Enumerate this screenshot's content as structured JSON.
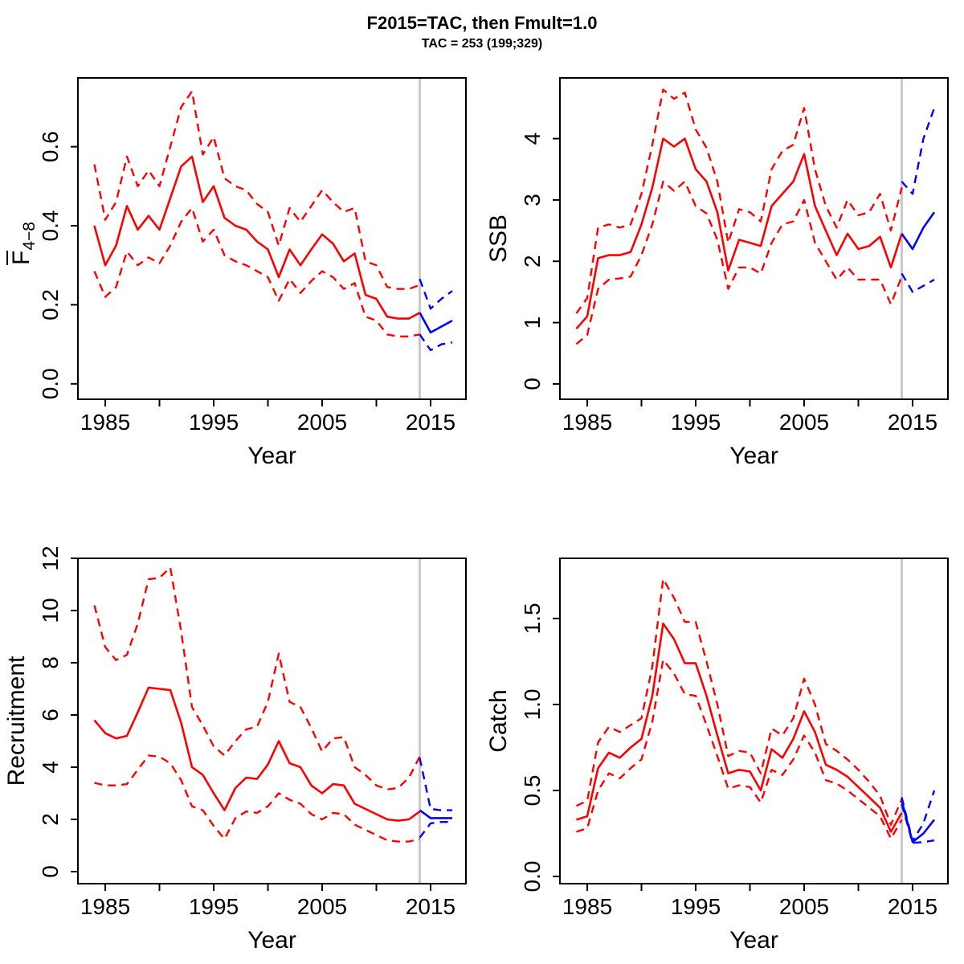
{
  "title": "F2015=TAC, then Fmult=1.0",
  "subtitle": "TAC = 253 (199;329)",
  "colors": {
    "historic": "#ff0000",
    "forecast": "#0000ff",
    "divider": "#c9c9c9",
    "axis": "#000000",
    "text": "#000000",
    "background": "#ffffff"
  },
  "x_axis": {
    "label": "Year",
    "ticks": [
      1985,
      1990,
      1995,
      2000,
      2005,
      2010,
      2015
    ],
    "labeled_ticks": [
      1985,
      1995,
      2005,
      2015
    ],
    "divider_year": 2014,
    "years_hist": [
      1984,
      1985,
      1986,
      1987,
      1988,
      1989,
      1990,
      1991,
      1992,
      1993,
      1994,
      1995,
      1996,
      1997,
      1998,
      1999,
      2000,
      2001,
      2002,
      2003,
      2004,
      2005,
      2006,
      2007,
      2008,
      2009,
      2010,
      2011,
      2012,
      2013,
      2014
    ],
    "years_fore": [
      2014,
      2015,
      2016,
      2017
    ]
  },
  "chart_data": [
    {
      "type": "line",
      "name": "fishing-mortality",
      "ylab": {
        "text": "F",
        "sub": "4−8",
        "overbar": true
      },
      "xlabel": "Year",
      "yticks": [
        0,
        0.2,
        0.4,
        0.6
      ],
      "ytick_labels": [
        "0.0",
        "0.2",
        "0.4",
        "0.6"
      ],
      "ylim": [
        -0.039,
        0.774
      ],
      "series": [
        {
          "name": "median-historic",
          "color_key": "historic",
          "dash": false,
          "period": "hist",
          "values": [
            0.4,
            0.3,
            0.35,
            0.45,
            0.39,
            0.425,
            0.39,
            0.47,
            0.55,
            0.575,
            0.46,
            0.5,
            0.42,
            0.4,
            0.39,
            0.36,
            0.34,
            0.27,
            0.34,
            0.3,
            0.34,
            0.378,
            0.355,
            0.31,
            0.33,
            0.225,
            0.215,
            0.17,
            0.165,
            0.165,
            0.18
          ]
        },
        {
          "name": "upper-historic",
          "color_key": "historic",
          "dash": true,
          "period": "hist",
          "values": [
            0.555,
            0.415,
            0.46,
            0.575,
            0.5,
            0.54,
            0.5,
            0.6,
            0.7,
            0.74,
            0.58,
            0.625,
            0.52,
            0.5,
            0.49,
            0.455,
            0.435,
            0.35,
            0.445,
            0.41,
            0.45,
            0.49,
            0.46,
            0.435,
            0.445,
            0.31,
            0.3,
            0.245,
            0.24,
            0.24,
            0.25
          ]
        },
        {
          "name": "lower-historic",
          "color_key": "historic",
          "dash": true,
          "period": "hist",
          "values": [
            0.285,
            0.22,
            0.245,
            0.335,
            0.3,
            0.32,
            0.305,
            0.35,
            0.41,
            0.445,
            0.36,
            0.39,
            0.325,
            0.31,
            0.3,
            0.285,
            0.27,
            0.21,
            0.265,
            0.23,
            0.26,
            0.285,
            0.27,
            0.24,
            0.255,
            0.17,
            0.16,
            0.125,
            0.12,
            0.12,
            0.125
          ]
        },
        {
          "name": "median-forecast",
          "color_key": "forecast",
          "dash": false,
          "period": "fore",
          "values": [
            0.18,
            0.13,
            0.145,
            0.16
          ]
        },
        {
          "name": "upper-forecast",
          "color_key": "forecast",
          "dash": true,
          "period": "fore",
          "values": [
            0.265,
            0.19,
            0.215,
            0.235
          ]
        },
        {
          "name": "lower-forecast",
          "color_key": "forecast",
          "dash": true,
          "period": "fore",
          "values": [
            0.125,
            0.085,
            0.1,
            0.105
          ]
        }
      ]
    },
    {
      "type": "line",
      "name": "ssb",
      "ylab": {
        "text": "SSB"
      },
      "xlabel": "Year",
      "yticks": [
        0,
        1,
        2,
        3,
        4
      ],
      "ytick_labels": [
        "0",
        "1",
        "2",
        "3",
        "4"
      ],
      "ylim": [
        -0.25,
        4.99
      ],
      "series": [
        {
          "name": "median-historic",
          "color_key": "historic",
          "dash": false,
          "period": "hist",
          "values": [
            0.9,
            1.1,
            2.05,
            2.1,
            2.1,
            2.15,
            2.6,
            3.2,
            4.0,
            3.87,
            4.0,
            3.5,
            3.3,
            2.8,
            1.85,
            2.35,
            2.3,
            2.25,
            2.9,
            3.1,
            3.3,
            3.75,
            2.9,
            2.5,
            2.1,
            2.45,
            2.2,
            2.25,
            2.4,
            1.9,
            2.45
          ]
        },
        {
          "name": "upper-historic",
          "color_key": "historic",
          "dash": true,
          "period": "hist",
          "values": [
            1.15,
            1.4,
            2.55,
            2.6,
            2.55,
            2.6,
            3.1,
            3.9,
            4.8,
            4.65,
            4.75,
            4.15,
            3.85,
            3.3,
            2.3,
            2.85,
            2.8,
            2.65,
            3.5,
            3.8,
            3.9,
            4.5,
            3.5,
            2.9,
            2.55,
            3.0,
            2.75,
            2.8,
            3.1,
            2.5,
            3.2
          ]
        },
        {
          "name": "lower-historic",
          "color_key": "historic",
          "dash": true,
          "period": "hist",
          "values": [
            0.65,
            0.8,
            1.55,
            1.7,
            1.72,
            1.75,
            2.1,
            2.6,
            3.3,
            3.15,
            3.3,
            2.9,
            2.78,
            2.35,
            1.55,
            1.9,
            1.9,
            1.8,
            2.3,
            2.6,
            2.65,
            3.0,
            2.3,
            2.0,
            1.7,
            1.9,
            1.7,
            1.7,
            1.7,
            1.3,
            1.75
          ]
        },
        {
          "name": "median-forecast",
          "color_key": "forecast",
          "dash": false,
          "period": "fore",
          "values": [
            2.45,
            2.2,
            2.55,
            2.8
          ]
        },
        {
          "name": "upper-forecast",
          "color_key": "forecast",
          "dash": true,
          "period": "fore",
          "values": [
            3.3,
            3.1,
            4.0,
            4.5
          ]
        },
        {
          "name": "lower-forecast",
          "color_key": "forecast",
          "dash": true,
          "period": "fore",
          "values": [
            1.8,
            1.5,
            1.6,
            1.7
          ]
        }
      ]
    },
    {
      "type": "line",
      "name": "recruitment",
      "ylab": {
        "text": "Recruitment"
      },
      "xlabel": "Year",
      "yticks": [
        0,
        2,
        4,
        6,
        8,
        10,
        12
      ],
      "ytick_labels": [
        "0",
        "2",
        "4",
        "6",
        "8",
        "10",
        "12"
      ],
      "ylim": [
        -0.462,
        12.0
      ],
      "series": [
        {
          "name": "median-historic",
          "color_key": "historic",
          "dash": false,
          "period": "hist",
          "values": [
            5.8,
            5.3,
            5.1,
            5.2,
            6.1,
            7.05,
            7.0,
            6.95,
            5.7,
            4.0,
            3.7,
            3.0,
            2.35,
            3.2,
            3.6,
            3.55,
            4.1,
            5.0,
            4.15,
            4.0,
            3.3,
            3.0,
            3.35,
            3.3,
            2.6,
            2.4,
            2.2,
            2.0,
            1.95,
            2.0,
            2.3
          ]
        },
        {
          "name": "upper-historic",
          "color_key": "historic",
          "dash": true,
          "period": "hist",
          "values": [
            10.2,
            8.6,
            8.1,
            8.3,
            9.5,
            11.2,
            11.25,
            11.65,
            9.2,
            6.3,
            5.6,
            4.8,
            4.45,
            5.0,
            5.45,
            5.55,
            6.5,
            8.35,
            6.5,
            6.3,
            5.5,
            4.6,
            5.1,
            5.15,
            4.0,
            3.7,
            3.3,
            3.15,
            3.2,
            3.6,
            4.4
          ]
        },
        {
          "name": "lower-historic",
          "color_key": "historic",
          "dash": true,
          "period": "hist",
          "values": [
            3.4,
            3.3,
            3.3,
            3.35,
            3.9,
            4.45,
            4.4,
            4.15,
            3.5,
            2.5,
            2.35,
            1.75,
            1.25,
            2.05,
            2.3,
            2.25,
            2.5,
            3.0,
            2.75,
            2.6,
            2.2,
            2.0,
            2.25,
            2.2,
            1.8,
            1.6,
            1.4,
            1.2,
            1.15,
            1.15,
            1.25
          ]
        },
        {
          "name": "median-forecast",
          "color_key": "forecast",
          "dash": false,
          "period": "fore",
          "values": [
            2.35,
            2.05,
            2.05,
            2.05
          ]
        },
        {
          "name": "upper-forecast",
          "color_key": "forecast",
          "dash": true,
          "period": "fore",
          "values": [
            4.35,
            2.4,
            2.35,
            2.35
          ]
        },
        {
          "name": "lower-forecast",
          "color_key": "forecast",
          "dash": true,
          "period": "fore",
          "values": [
            1.3,
            1.85,
            1.9,
            1.9
          ]
        }
      ]
    },
    {
      "type": "line",
      "name": "catch",
      "ylab": {
        "text": "Catch"
      },
      "xlabel": "Year",
      "yticks": [
        0,
        0.5,
        1.0,
        1.5
      ],
      "ytick_labels": [
        "0.0",
        "0.5",
        "1.0",
        "1.5"
      ],
      "ylim": [
        -0.042,
        1.85
      ],
      "series": [
        {
          "name": "median-historic",
          "color_key": "historic",
          "dash": false,
          "period": "hist",
          "values": [
            0.33,
            0.35,
            0.63,
            0.72,
            0.69,
            0.75,
            0.8,
            1.05,
            1.47,
            1.38,
            1.24,
            1.24,
            1.05,
            0.82,
            0.6,
            0.62,
            0.61,
            0.5,
            0.74,
            0.69,
            0.8,
            0.96,
            0.84,
            0.65,
            0.62,
            0.58,
            0.52,
            0.46,
            0.4,
            0.26,
            0.37
          ]
        },
        {
          "name": "upper-historic",
          "color_key": "historic",
          "dash": true,
          "period": "hist",
          "values": [
            0.41,
            0.44,
            0.78,
            0.87,
            0.84,
            0.88,
            0.92,
            1.22,
            1.73,
            1.62,
            1.48,
            1.48,
            1.25,
            1.0,
            0.7,
            0.73,
            0.72,
            0.6,
            0.86,
            0.82,
            0.92,
            1.15,
            1.0,
            0.77,
            0.73,
            0.68,
            0.62,
            0.55,
            0.47,
            0.3,
            0.45
          ]
        },
        {
          "name": "lower-historic",
          "color_key": "historic",
          "dash": true,
          "period": "hist",
          "values": [
            0.26,
            0.28,
            0.5,
            0.6,
            0.57,
            0.63,
            0.68,
            0.9,
            1.26,
            1.18,
            1.06,
            1.05,
            0.88,
            0.7,
            0.51,
            0.53,
            0.52,
            0.43,
            0.62,
            0.59,
            0.68,
            0.82,
            0.72,
            0.56,
            0.54,
            0.5,
            0.45,
            0.4,
            0.35,
            0.22,
            0.33
          ]
        },
        {
          "name": "median-forecast",
          "color_key": "forecast",
          "dash": false,
          "period": "fore",
          "values": [
            0.44,
            0.2,
            0.25,
            0.33
          ]
        },
        {
          "name": "upper-forecast",
          "color_key": "forecast",
          "dash": true,
          "period": "fore",
          "values": [
            0.46,
            0.205,
            0.31,
            0.5
          ]
        },
        {
          "name": "lower-forecast",
          "color_key": "forecast",
          "dash": true,
          "period": "fore",
          "values": [
            0.42,
            0.195,
            0.2,
            0.21
          ]
        }
      ]
    }
  ]
}
